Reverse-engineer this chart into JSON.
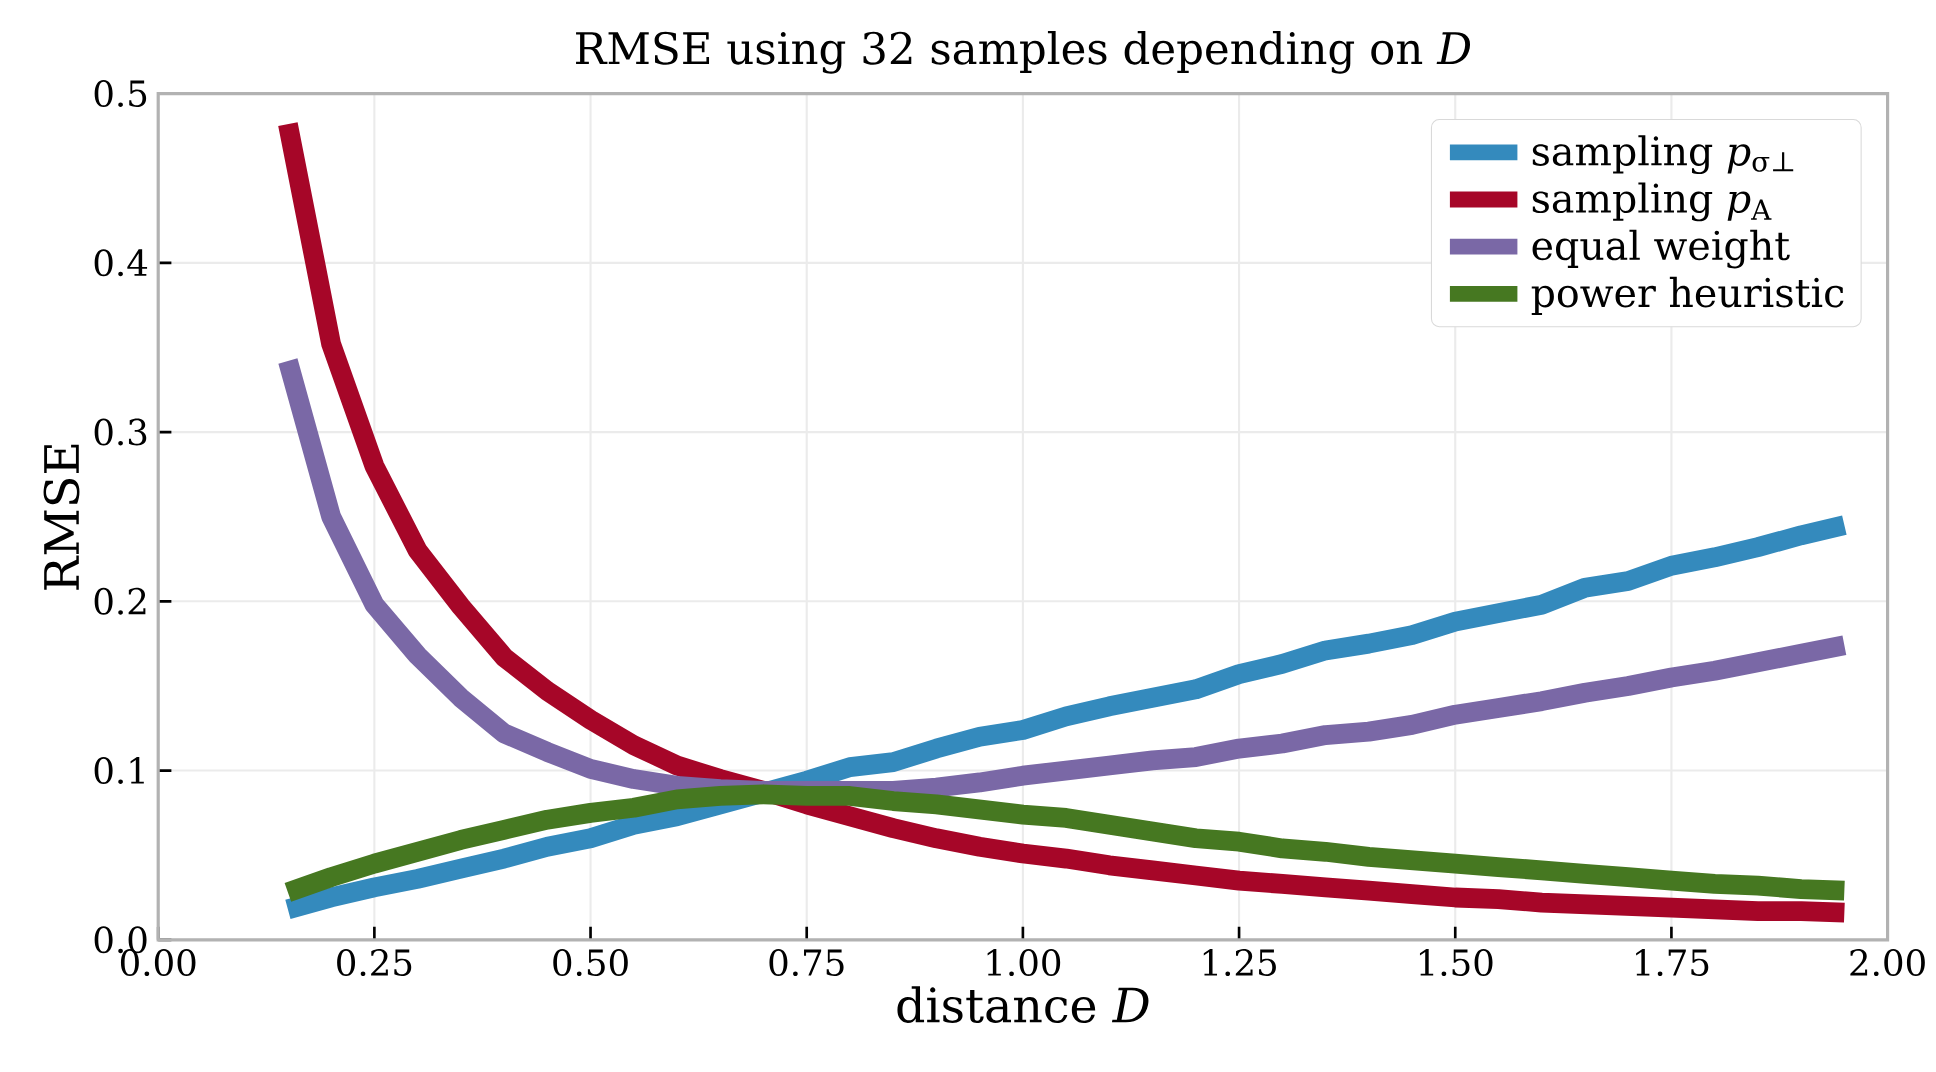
{
  "chart_data": {
    "type": "line",
    "title": "RMSE using 32 samples depending on *D*",
    "xlabel": "distance *D*",
    "ylabel": "RMSE",
    "x": [
      0.15,
      0.2,
      0.25,
      0.3,
      0.35,
      0.4,
      0.45,
      0.5,
      0.55,
      0.6,
      0.65,
      0.7,
      0.75,
      0.8,
      0.85,
      0.9,
      0.95,
      1.0,
      1.05,
      1.1,
      1.15,
      1.2,
      1.25,
      1.3,
      1.35,
      1.4,
      1.45,
      1.5,
      1.55,
      1.6,
      1.65,
      1.7,
      1.75,
      1.8,
      1.85,
      1.9,
      1.95
    ],
    "series": [
      {
        "name": "sampling *p*$_{σ⊥}$",
        "color": "#348abd",
        "values": [
          0.018,
          0.025,
          0.031,
          0.036,
          0.042,
          0.048,
          0.055,
          0.06,
          0.068,
          0.073,
          0.08,
          0.087,
          0.094,
          0.102,
          0.105,
          0.113,
          0.12,
          0.124,
          0.132,
          0.138,
          0.143,
          0.148,
          0.157,
          0.163,
          0.171,
          0.175,
          0.18,
          0.188,
          0.193,
          0.198,
          0.208,
          0.212,
          0.221,
          0.226,
          0.232,
          0.239,
          0.245
        ]
      },
      {
        "name": "sampling *p*$_{A}$",
        "color": "#a60628",
        "values": [
          0.482,
          0.352,
          0.28,
          0.23,
          0.197,
          0.167,
          0.147,
          0.13,
          0.115,
          0.103,
          0.095,
          0.088,
          0.08,
          0.073,
          0.066,
          0.06,
          0.055,
          0.051,
          0.048,
          0.044,
          0.041,
          0.038,
          0.035,
          0.033,
          0.031,
          0.029,
          0.027,
          0.025,
          0.024,
          0.022,
          0.021,
          0.02,
          0.019,
          0.018,
          0.017,
          0.017,
          0.016
        ]
      },
      {
        "name": "equal weight",
        "color": "#7a68a6",
        "values": [
          0.342,
          0.25,
          0.198,
          0.168,
          0.143,
          0.122,
          0.111,
          0.101,
          0.095,
          0.091,
          0.089,
          0.088,
          0.088,
          0.088,
          0.088,
          0.09,
          0.093,
          0.097,
          0.1,
          0.103,
          0.106,
          0.108,
          0.113,
          0.116,
          0.121,
          0.123,
          0.127,
          0.133,
          0.137,
          0.141,
          0.146,
          0.15,
          0.155,
          0.159,
          0.164,
          0.169,
          0.174
        ]
      },
      {
        "name": "power heuristic",
        "color": "#467821",
        "values": [
          0.028,
          0.037,
          0.045,
          0.052,
          0.059,
          0.065,
          0.071,
          0.075,
          0.078,
          0.083,
          0.085,
          0.086,
          0.085,
          0.085,
          0.082,
          0.08,
          0.077,
          0.074,
          0.072,
          0.068,
          0.064,
          0.06,
          0.058,
          0.054,
          0.052,
          0.049,
          0.047,
          0.045,
          0.043,
          0.041,
          0.039,
          0.037,
          0.035,
          0.033,
          0.032,
          0.03,
          0.029
        ]
      }
    ],
    "xlim": [
      0,
      2
    ],
    "ylim": [
      0,
      0.5
    ],
    "xticks": [
      {
        "value": 0,
        "label": "0.00"
      },
      {
        "value": 0.25,
        "label": "0.25"
      },
      {
        "value": 0.5,
        "label": "0.50"
      },
      {
        "value": 0.75,
        "label": "0.75"
      },
      {
        "value": 1,
        "label": "1.00"
      },
      {
        "value": 1.25,
        "label": "1.25"
      },
      {
        "value": 1.5,
        "label": "1.50"
      },
      {
        "value": 1.75,
        "label": "1.75"
      },
      {
        "value": 2,
        "label": "2.00"
      }
    ],
    "yticks": [
      {
        "value": 0,
        "label": "0.0"
      },
      {
        "value": 0.1,
        "label": "0.1"
      },
      {
        "value": 0.2,
        "label": "0.2"
      },
      {
        "value": 0.3,
        "label": "0.3"
      },
      {
        "value": 0.4,
        "label": "0.4"
      },
      {
        "value": 0.5,
        "label": "0.5"
      }
    ],
    "grid": true,
    "legend": "top right",
    "marker": "none",
    "line_style": "solid"
  }
}
